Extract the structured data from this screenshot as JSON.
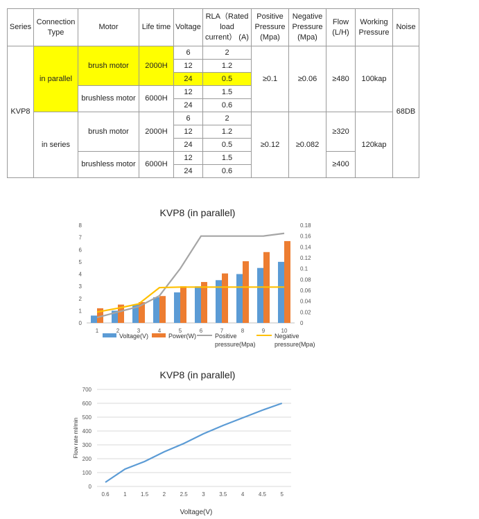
{
  "table": {
    "headers": [
      "Series",
      "Connection Type",
      "Motor",
      "Life time",
      "Voltage",
      "RLA（Rated load current） (A)",
      "Positive Pressure (Mpa)",
      "Negative Pressure (Mpa)",
      "Flow (L/H)",
      "Working Pressure",
      "Noise"
    ],
    "series": "KVP8",
    "noise": "68DB",
    "groups": [
      {
        "connection": "in parallel",
        "positive": "≥0.1",
        "negative": "≥0.06",
        "flow": [
          "≥480"
        ],
        "working": "100kap",
        "motors": [
          {
            "name": "brush motor",
            "life": "2000H",
            "rows": [
              {
                "v": "6",
                "rla": "2"
              },
              {
                "v": "12",
                "rla": "1.2"
              },
              {
                "v": "24",
                "rla": "0.5"
              }
            ]
          },
          {
            "name": "brushless motor",
            "life": "6000H",
            "rows": [
              {
                "v": "12",
                "rla": "1.5"
              },
              {
                "v": "24",
                "rla": "0.6"
              }
            ]
          }
        ]
      },
      {
        "connection": "in series",
        "positive": "≥0.12",
        "negative": "≥0.082",
        "flow": [
          "≥320",
          "≥400"
        ],
        "working": "120kap",
        "motors": [
          {
            "name": "brush motor",
            "life": "2000H",
            "rows": [
              {
                "v": "6",
                "rla": "2"
              },
              {
                "v": "12",
                "rla": "1.2"
              },
              {
                "v": "24",
                "rla": "0.5"
              }
            ]
          },
          {
            "name": "brushless motor",
            "life": "6000H",
            "rows": [
              {
                "v": "12",
                "rla": "1.5"
              },
              {
                "v": "24",
                "rla": "0.6"
              }
            ]
          }
        ]
      }
    ],
    "highlight_color": "#ffff00"
  },
  "chart_data": [
    {
      "type": "bar",
      "title": "KVP8 (in parallel)",
      "categories": [
        "1",
        "2",
        "3",
        "4",
        "5",
        "6",
        "7",
        "8",
        "9",
        "10"
      ],
      "series": [
        {
          "name": "Voltage(V)",
          "type": "bar",
          "axis": "left",
          "color": "#5b9bd5",
          "values": [
            0.6,
            1,
            1.5,
            2.1,
            2.5,
            3,
            3.5,
            4,
            4.5,
            5
          ]
        },
        {
          "name": "Power(W)",
          "type": "bar",
          "axis": "left",
          "color": "#ed7d31",
          "values": [
            1.2,
            1.5,
            1.7,
            2.2,
            3,
            3.35,
            4.05,
            5.05,
            5.8,
            6.7
          ]
        },
        {
          "name": "Positive pressure(Mpa)",
          "type": "line",
          "axis": "right",
          "color": "#a5a5a5",
          "values": [
            0.01,
            0.02,
            0.03,
            0.05,
            0.1,
            0.16,
            0.16,
            0.16,
            0.16,
            0.165
          ]
        },
        {
          "name": "Negative pressure(Mpa)",
          "type": "line",
          "axis": "right",
          "color": "#ffc000",
          "values": [
            0.02,
            0.027,
            0.035,
            0.065,
            0.066,
            0.066,
            0.066,
            0.066,
            0.066,
            0.066
          ]
        }
      ],
      "y_left": {
        "min": 0,
        "max": 8,
        "ticks": [
          "0",
          "1",
          "2",
          "3",
          "4",
          "5",
          "6",
          "7",
          "8"
        ]
      },
      "y_right": {
        "min": 0,
        "max": 0.18,
        "ticks": [
          "0",
          "0.02",
          "0.04",
          "0.06",
          "0.08",
          "0.1",
          "0.12",
          "0.14",
          "0.16",
          "0.18"
        ]
      },
      "legend_position": "bottom",
      "grid": false
    },
    {
      "type": "line",
      "title": "KVP8 (in parallel)",
      "xlabel": "Voltage(V)",
      "ylabel": "Flow rate  ml/min",
      "x": [
        "0.6",
        "1",
        "1.5",
        "2",
        "2.5",
        "3",
        "3.5",
        "4",
        "4.5",
        "5"
      ],
      "series": [
        {
          "color": "#5b9bd5",
          "values": [
            30,
            125,
            180,
            250,
            310,
            380,
            440,
            495,
            550,
            600
          ]
        }
      ],
      "ylim": [
        0,
        700
      ],
      "y_ticks": [
        "0",
        "100",
        "200",
        "300",
        "400",
        "500",
        "600",
        "700"
      ],
      "grid": true
    }
  ]
}
